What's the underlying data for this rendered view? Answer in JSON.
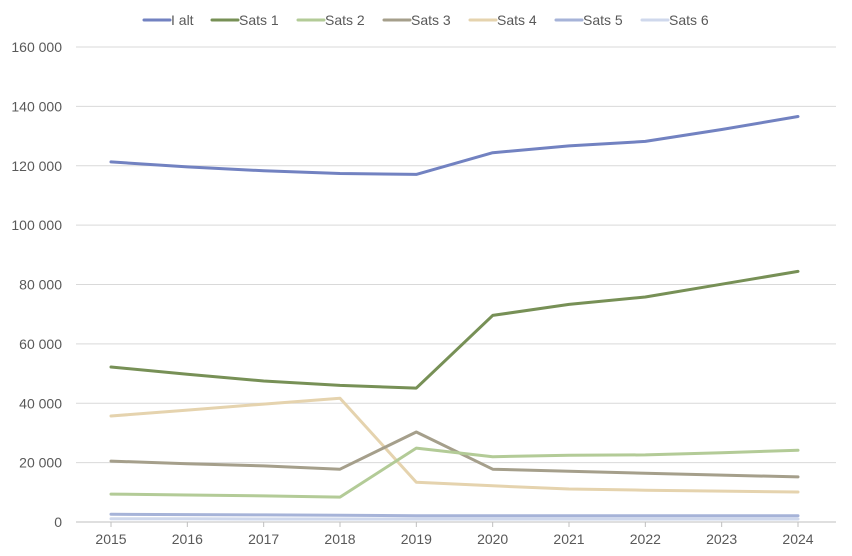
{
  "chart_data": {
    "type": "line",
    "title": "",
    "xlabel": "",
    "ylabel": "",
    "x": [
      2015,
      2016,
      2017,
      2018,
      2019,
      2020,
      2021,
      2022,
      2023,
      2024
    ],
    "ylim": [
      0,
      160000
    ],
    "yticks": [
      {
        "value": 0,
        "label": "0"
      },
      {
        "value": 20000,
        "label": "20 000"
      },
      {
        "value": 40000,
        "label": "40 000"
      },
      {
        "value": 60000,
        "label": "60 000"
      },
      {
        "value": 80000,
        "label": "80 000"
      },
      {
        "value": 100000,
        "label": "100 000"
      },
      {
        "value": 120000,
        "label": "120 000"
      },
      {
        "value": 140000,
        "label": "140 000"
      },
      {
        "value": 160000,
        "label": "160 000"
      }
    ],
    "xticks": [
      "2015",
      "2016",
      "2017",
      "2018",
      "2019",
      "2020",
      "2021",
      "2022",
      "2023",
      "2024"
    ],
    "grid": true,
    "legend": "top",
    "series": [
      {
        "name": "I alt",
        "color": "#7282c1",
        "values": [
          121300,
          119600,
          118300,
          117400,
          117100,
          124400,
          126700,
          128200,
          132200,
          136600
        ]
      },
      {
        "name": "Sats 1",
        "color": "#779056",
        "values": [
          52200,
          49800,
          47500,
          46000,
          45100,
          69600,
          73300,
          75800,
          80100,
          84400
        ]
      },
      {
        "name": "Sats 2",
        "color": "#b3cb97",
        "values": [
          9400,
          9100,
          8800,
          8400,
          24900,
          22000,
          22500,
          22600,
          23300,
          24200
        ]
      },
      {
        "name": "Sats 3",
        "color": "#a59f8b",
        "values": [
          20500,
          19600,
          18900,
          17800,
          30300,
          17800,
          17100,
          16400,
          15800,
          15200
        ]
      },
      {
        "name": "Sats 4",
        "color": "#e5d3ae",
        "values": [
          35700,
          37700,
          39700,
          41700,
          13400,
          12200,
          11100,
          10700,
          10400,
          10100
        ]
      },
      {
        "name": "Sats 5",
        "color": "#a6b3d8",
        "values": [
          2600,
          2500,
          2400,
          2300,
          2100,
          2100,
          2100,
          2100,
          2100,
          2100
        ]
      },
      {
        "name": "Sats 6",
        "color": "#cfd8ec",
        "values": [
          1100,
          1100,
          1000,
          1000,
          1000,
          1000,
          1000,
          1000,
          1000,
          1000
        ]
      }
    ]
  }
}
